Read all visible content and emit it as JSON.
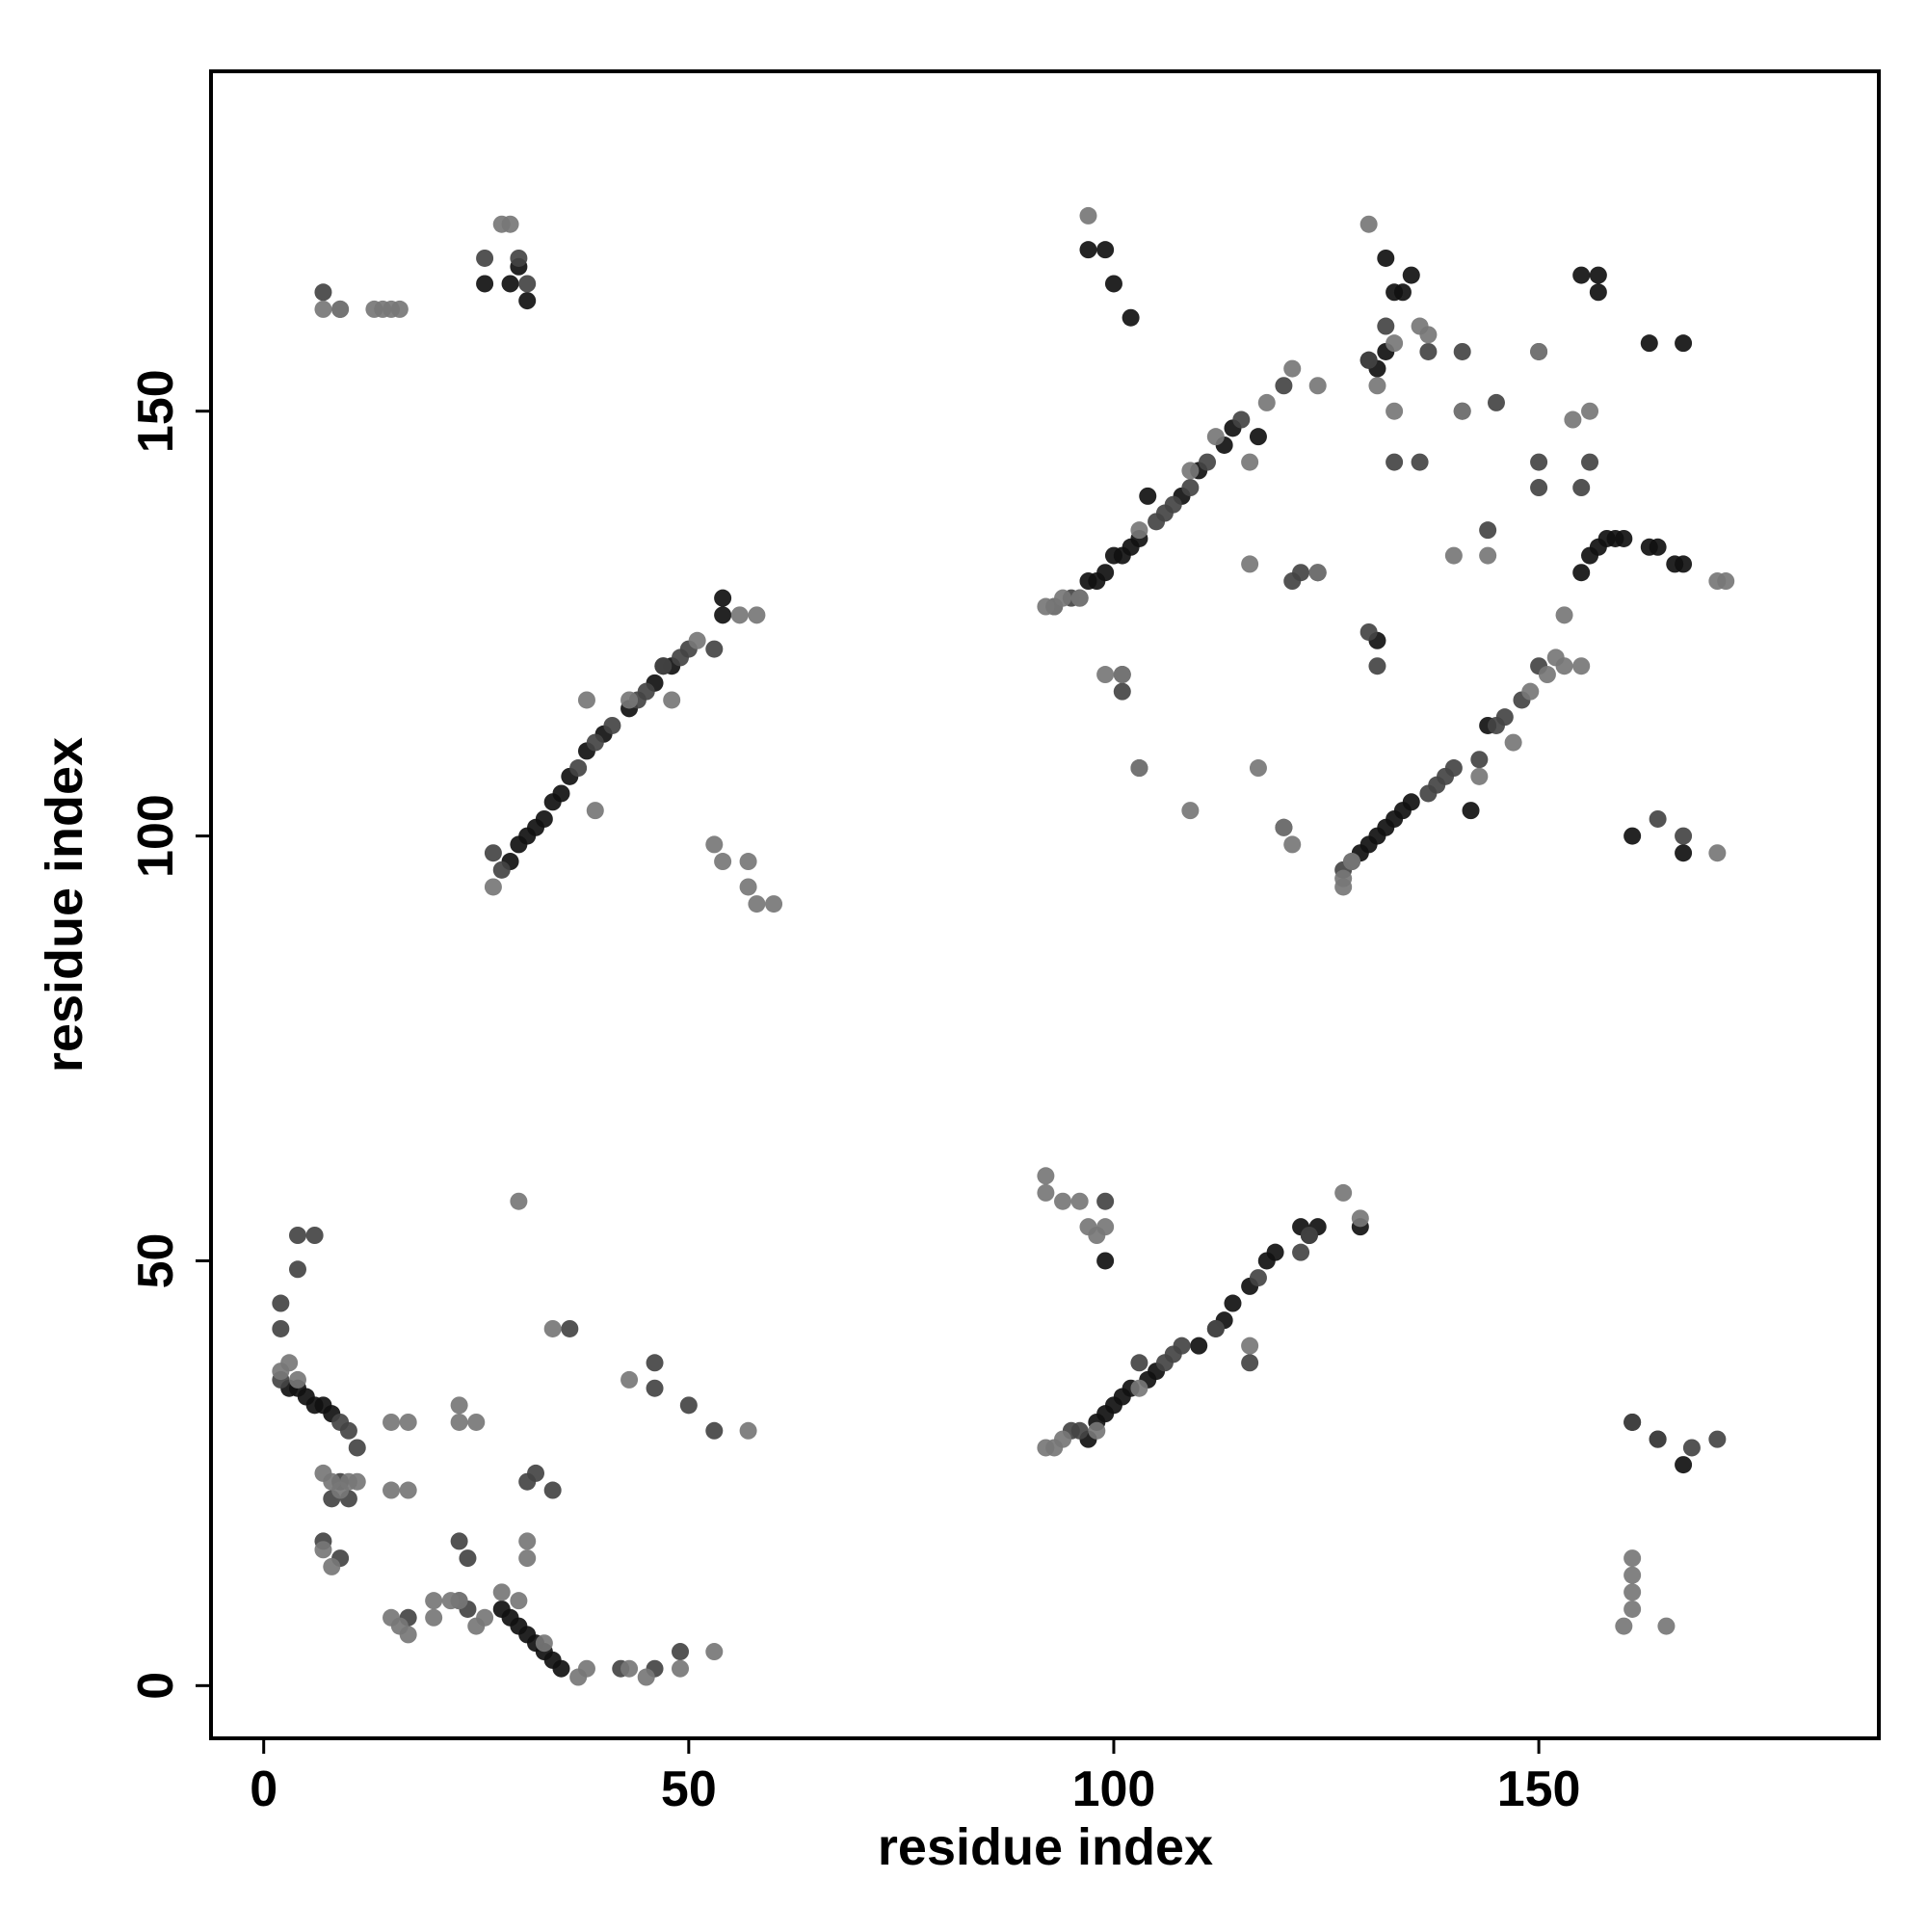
{
  "chart_data": {
    "type": "scatter",
    "x_label": "residue index",
    "y_label": "residue index",
    "xlim": [
      -6.2,
      190
    ],
    "ylim": [
      -6.2,
      190
    ],
    "xticks": [
      0,
      50,
      100,
      150
    ],
    "yticks": [
      0,
      50,
      100,
      150
    ],
    "grid": false,
    "series": [
      {
        "color": "#111111",
        "x": [
          3,
          4,
          5,
          6,
          7,
          8,
          28,
          29,
          30,
          31,
          32,
          33,
          34,
          35,
          29,
          30,
          31,
          32,
          33,
          34,
          35,
          36,
          38,
          40,
          43,
          46,
          47,
          48,
          54,
          54,
          26,
          29,
          30,
          31,
          97,
          98,
          99,
          100,
          101,
          102,
          103,
          104,
          108,
          110,
          113,
          114,
          117,
          97,
          99,
          100,
          102,
          124,
          132,
          133,
          134,
          135,
          130,
          131,
          132,
          131,
          129,
          130,
          131,
          132,
          133,
          134,
          135,
          142,
          144,
          155,
          156,
          157,
          158,
          159,
          160,
          163,
          164,
          166,
          167,
          155,
          157,
          157,
          163,
          167,
          161,
          167,
          161,
          164,
          167,
          97,
          98,
          99,
          100,
          101,
          102,
          104,
          105,
          110,
          113,
          114,
          116,
          118,
          119,
          123,
          124,
          129,
          99,
          122,
          120
        ],
        "y": [
          35,
          35,
          34,
          33,
          33,
          32,
          9,
          8,
          7,
          6,
          5,
          4,
          3,
          2,
          97,
          99,
          100,
          101,
          102,
          104,
          105,
          107,
          110,
          112,
          115,
          118,
          120,
          120,
          126,
          128,
          165,
          165,
          167,
          163,
          130,
          130,
          131,
          133,
          133,
          134,
          135,
          140,
          140,
          143,
          146,
          148,
          147,
          169,
          169,
          165,
          161,
          131,
          168,
          164,
          164,
          166,
          156,
          155,
          157,
          123,
          98,
          99,
          100,
          101,
          102,
          103,
          104,
          103,
          113,
          131,
          133,
          134,
          135,
          135,
          135,
          134,
          134,
          132,
          132,
          166,
          166,
          164,
          158,
          158,
          100,
          98,
          31,
          29,
          26,
          29,
          31,
          32,
          33,
          34,
          35,
          36,
          37,
          40,
          43,
          45,
          47,
          50,
          51,
          53,
          54,
          54,
          50,
          54,
          101
        ]
      },
      {
        "color": "#444444",
        "x": [
          2,
          2,
          2,
          4,
          4,
          6,
          9,
          10,
          11,
          8,
          9,
          10,
          7,
          9,
          17,
          23,
          24,
          24,
          23,
          31,
          32,
          34,
          36,
          42,
          46,
          49,
          46,
          46,
          50,
          53,
          27,
          28,
          37,
          39,
          41,
          44,
          45,
          47,
          49,
          50,
          53,
          7,
          9,
          26,
          30,
          31,
          93,
          95,
          96,
          105,
          106,
          107,
          109,
          111,
          115,
          120,
          101,
          101,
          103,
          121,
          122,
          130,
          131,
          133,
          136,
          137,
          141,
          141,
          144,
          145,
          150,
          150,
          150,
          156,
          155,
          127,
          128,
          137,
          138,
          139,
          140,
          143,
          145,
          146,
          148,
          150,
          164,
          167,
          168,
          171,
          161,
          164,
          95,
          96,
          103,
          106,
          107,
          108,
          112,
          117,
          122,
          123,
          116,
          99,
          130,
          132,
          112
        ],
        "y": [
          36,
          42,
          45,
          49,
          53,
          53,
          31,
          30,
          28,
          22,
          24,
          22,
          17,
          15,
          8,
          17,
          15,
          9,
          10,
          24,
          25,
          23,
          42,
          2,
          38,
          4,
          2,
          35,
          33,
          30,
          98,
          96,
          108,
          111,
          113,
          116,
          117,
          120,
          121,
          122,
          122,
          164,
          162,
          168,
          168,
          165,
          127,
          128,
          128,
          137,
          138,
          139,
          141,
          144,
          149,
          153,
          117,
          119,
          108,
          130,
          131,
          124,
          120,
          144,
          144,
          157,
          157,
          150,
          136,
          151,
          157,
          144,
          141,
          144,
          141,
          96,
          97,
          105,
          106,
          107,
          108,
          109,
          113,
          114,
          116,
          120,
          102,
          100,
          28,
          29,
          31,
          29,
          30,
          30,
          38,
          38,
          39,
          40,
          42,
          48,
          51,
          53,
          38,
          57,
          156,
          160,
          42
        ]
      },
      {
        "color": "#777777",
        "x": [
          2,
          3,
          4,
          7,
          8,
          9,
          10,
          11,
          7,
          8,
          15,
          16,
          17,
          15,
          17,
          15,
          17,
          20,
          20,
          22,
          23,
          25,
          26,
          23,
          25,
          23,
          28,
          30,
          33,
          37,
          38,
          31,
          31,
          30,
          34,
          43,
          45,
          49,
          53,
          57,
          43,
          27,
          39,
          38,
          43,
          48,
          51,
          56,
          58,
          53,
          54,
          57,
          57,
          58,
          60,
          7,
          9,
          13,
          14,
          15,
          16,
          28,
          29,
          92,
          93,
          94,
          96,
          103,
          109,
          112,
          116,
          118,
          121,
          124,
          97,
          99,
          101,
          103,
          109,
          116,
          117,
          120,
          121,
          124,
          130,
          133,
          131,
          133,
          136,
          137,
          141,
          140,
          144,
          150,
          154,
          156,
          127,
          127,
          128,
          143,
          147,
          149,
          151,
          152,
          153,
          155,
          153,
          171,
          172,
          171,
          161,
          161,
          161,
          160,
          161,
          165,
          92,
          93,
          94,
          98,
          103,
          116,
          127,
          129,
          92,
          92,
          94,
          96,
          97,
          98,
          99
        ],
        "y": [
          37,
          38,
          36,
          25,
          24,
          23,
          24,
          24,
          16,
          14,
          8,
          7,
          6,
          31,
          31,
          23,
          23,
          10,
          8,
          10,
          10,
          7,
          8,
          31,
          31,
          33,
          11,
          10,
          5,
          1,
          2,
          17,
          15,
          57,
          42,
          2,
          1,
          2,
          4,
          30,
          36,
          94,
          103,
          116,
          116,
          116,
          123,
          126,
          126,
          99,
          97,
          97,
          94,
          92,
          92,
          162,
          162,
          162,
          162,
          162,
          162,
          172,
          172,
          127,
          127,
          128,
          128,
          136,
          143,
          147,
          144,
          151,
          155,
          153,
          173,
          119,
          119,
          108,
          103,
          132,
          108,
          101,
          99,
          131,
          172,
          150,
          153,
          158,
          160,
          159,
          150,
          133,
          133,
          157,
          149,
          150,
          94,
          95,
          97,
          107,
          111,
          117,
          119,
          121,
          120,
          120,
          126,
          130,
          130,
          98,
          15,
          13,
          11,
          7,
          9,
          7,
          28,
          28,
          29,
          30,
          35,
          40,
          58,
          55,
          60,
          58,
          57,
          57,
          54,
          53,
          54
        ]
      }
    ]
  }
}
